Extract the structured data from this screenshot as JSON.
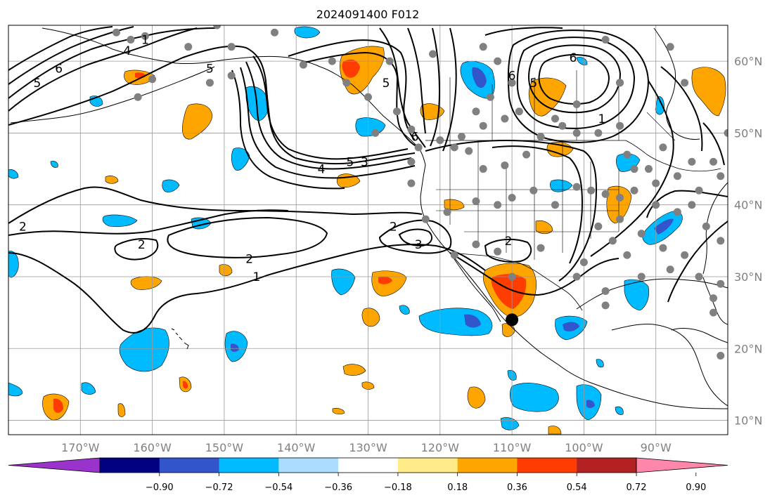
{
  "title": "2024091400 F012",
  "map": {
    "lon_range": [
      -180,
      -80
    ],
    "lat_range": [
      8,
      65
    ],
    "lon_ticks": [
      {
        "value": -170,
        "label": "170°W"
      },
      {
        "value": -160,
        "label": "160°W"
      },
      {
        "value": -150,
        "label": "150°W"
      },
      {
        "value": -140,
        "label": "140°W"
      },
      {
        "value": -130,
        "label": "130°W"
      },
      {
        "value": -120,
        "label": "120°W"
      },
      {
        "value": -110,
        "label": "110°W"
      },
      {
        "value": -100,
        "label": "100°W"
      },
      {
        "value": -90,
        "label": "90°W"
      }
    ],
    "lat_ticks": [
      {
        "value": 60,
        "label": "60°N"
      },
      {
        "value": 50,
        "label": "50°N"
      },
      {
        "value": 40,
        "label": "40°N"
      },
      {
        "value": 30,
        "label": "30°N"
      },
      {
        "value": 20,
        "label": "20°N"
      },
      {
        "value": 10,
        "label": "10°N"
      }
    ],
    "colors": {
      "grid": "#999999",
      "coast": "#000000",
      "contour": "#000000",
      "station": "#808080",
      "marker": "#000000"
    }
  },
  "colorbar": {
    "colors": [
      "#9933cc",
      "#000080",
      "#3355cc",
      "#00bbff",
      "#aaddff",
      "#ffffff",
      "#ffeb88",
      "#ffa500",
      "#ff3d00",
      "#b22222",
      "#ff88aa"
    ],
    "tick_labels": [
      "−0.90",
      "−0.72",
      "−0.54",
      "−0.36",
      "−0.18",
      "0.18",
      "0.36",
      "0.54",
      "0.72",
      "0.90"
    ]
  },
  "contour_labels": [
    {
      "text": "6",
      "lon": -173,
      "lat": 59
    },
    {
      "text": "5",
      "lon": -176,
      "lat": 57
    },
    {
      "text": "5",
      "lon": -152,
      "lat": 59
    },
    {
      "text": "4",
      "lon": -163.5,
      "lat": 61.5
    },
    {
      "text": "1",
      "lon": -161,
      "lat": 63
    },
    {
      "text": "5",
      "lon": -127.5,
      "lat": 57
    },
    {
      "text": "5",
      "lon": -107,
      "lat": 57
    },
    {
      "text": "4",
      "lon": -136.5,
      "lat": 45
    },
    {
      "text": "5",
      "lon": -132.5,
      "lat": 46
    },
    {
      "text": "3",
      "lon": -130.5,
      "lat": 46
    },
    {
      "text": "6",
      "lon": -123.5,
      "lat": 49.5
    },
    {
      "text": "6",
      "lon": -101.5,
      "lat": 60.5
    },
    {
      "text": "6",
      "lon": -110,
      "lat": 58
    },
    {
      "text": "1",
      "lon": -97.5,
      "lat": 52
    },
    {
      "text": "2",
      "lon": -178,
      "lat": 37
    },
    {
      "text": "2",
      "lon": -161.5,
      "lat": 34.5
    },
    {
      "text": "2",
      "lon": -146.5,
      "lat": 32.5
    },
    {
      "text": "1",
      "lon": -145.5,
      "lat": 30
    },
    {
      "text": "2",
      "lon": -126.5,
      "lat": 37
    },
    {
      "text": "3",
      "lon": -123,
      "lat": 34.5
    },
    {
      "text": "2",
      "lon": -110.5,
      "lat": 35
    }
  ],
  "station_dots": [
    [
      -165,
      64
    ],
    [
      -163,
      63
    ],
    [
      -161,
      63.5
    ],
    [
      -155,
      62
    ],
    [
      -151,
      65
    ],
    [
      -149,
      62
    ],
    [
      -143,
      64
    ],
    [
      -139,
      59.5
    ],
    [
      -149,
      58
    ],
    [
      -160,
      57.5
    ],
    [
      -152,
      57
    ],
    [
      -162,
      55
    ],
    [
      -135,
      60
    ],
    [
      -133,
      57
    ],
    [
      -130,
      55
    ],
    [
      -127,
      60
    ],
    [
      -121,
      61
    ],
    [
      -114,
      62
    ],
    [
      -112,
      60
    ],
    [
      -110,
      57
    ],
    [
      -113,
      55
    ],
    [
      -115,
      53
    ],
    [
      -109,
      53
    ],
    [
      -111,
      52
    ],
    [
      -114,
      51
    ],
    [
      -117,
      49.5
    ],
    [
      -120,
      49
    ],
    [
      -123,
      48
    ],
    [
      -124,
      50.5
    ],
    [
      -126,
      53
    ],
    [
      -129,
      50
    ],
    [
      -124,
      46
    ],
    [
      -124,
      43
    ],
    [
      -118,
      48
    ],
    [
      -116,
      47.5
    ],
    [
      -114,
      45
    ],
    [
      -111,
      45.5
    ],
    [
      -108,
      47
    ],
    [
      -106,
      49.5
    ],
    [
      -103,
      51
    ],
    [
      -101,
      50
    ],
    [
      -98,
      50
    ],
    [
      -95,
      51
    ],
    [
      -104,
      52
    ],
    [
      -101,
      54
    ],
    [
      -95,
      57
    ],
    [
      -88,
      62
    ],
    [
      -97,
      63
    ],
    [
      -95,
      57
    ],
    [
      -107,
      42
    ],
    [
      -110,
      41
    ],
    [
      -112,
      40
    ],
    [
      -115,
      40.5
    ],
    [
      -119,
      39
    ],
    [
      -122,
      38
    ],
    [
      -118,
      33
    ],
    [
      -115,
      34.5
    ],
    [
      -112,
      33.5
    ],
    [
      -110,
      30
    ],
    [
      -106,
      34
    ],
    [
      -104,
      40
    ],
    [
      -101,
      42.5
    ],
    [
      -99,
      42
    ],
    [
      -97,
      41.5
    ],
    [
      -95,
      41
    ],
    [
      -93,
      42
    ],
    [
      -90,
      40
    ],
    [
      -87,
      39
    ],
    [
      -98,
      37
    ],
    [
      -96,
      35
    ],
    [
      -94,
      33
    ],
    [
      -92,
      30
    ],
    [
      -89,
      34
    ],
    [
      -86,
      33
    ],
    [
      -84,
      30
    ],
    [
      -82,
      25
    ],
    [
      -81,
      29
    ],
    [
      -101,
      30
    ],
    [
      -100,
      32
    ],
    [
      -97,
      28
    ],
    [
      -97,
      26
    ],
    [
      -84,
      42
    ],
    [
      -81,
      44
    ],
    [
      -85,
      46
    ],
    [
      -87,
      44
    ],
    [
      -91,
      45
    ],
    [
      -94,
      47
    ],
    [
      -89,
      48
    ],
    [
      -82,
      46
    ],
    [
      -80,
      50
    ],
    [
      -86,
      57
    ],
    [
      -93,
      45
    ],
    [
      -90,
      43
    ],
    [
      -85,
      40
    ],
    [
      -88,
      31
    ],
    [
      -83,
      37
    ],
    [
      -81,
      19
    ],
    [
      -82,
      27
    ],
    [
      -81,
      35
    ],
    [
      -92,
      36
    ],
    [
      -95,
      38
    ]
  ],
  "marker": {
    "lon": -110,
    "lat": 24
  }
}
